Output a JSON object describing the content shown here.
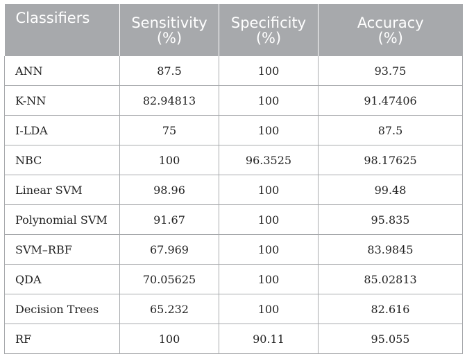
{
  "table": {
    "headers": [
      {
        "line1": "Classifiers",
        "line2": ""
      },
      {
        "line1": "Sensitivity",
        "line2": "(%)"
      },
      {
        "line1": "Specificity",
        "line2": "(%)"
      },
      {
        "line1": "Accuracy",
        "line2": "(%)"
      }
    ],
    "rows": [
      {
        "classifier": "ANN",
        "sensitivity": "87.5",
        "specificity": "100",
        "accuracy": "93.75"
      },
      {
        "classifier": "K-NN",
        "sensitivity": "82.94813",
        "specificity": "100",
        "accuracy": "91.47406"
      },
      {
        "classifier": "I-LDA",
        "sensitivity": "75",
        "specificity": "100",
        "accuracy": "87.5"
      },
      {
        "classifier": "NBC",
        "sensitivity": "100",
        "specificity": "96.3525",
        "accuracy": "98.17625"
      },
      {
        "classifier": "Linear SVM",
        "sensitivity": "98.96",
        "specificity": "100",
        "accuracy": "99.48"
      },
      {
        "classifier": "Polynomial SVM",
        "sensitivity": "91.67",
        "specificity": "100",
        "accuracy": "95.835"
      },
      {
        "classifier": "SVM–RBF",
        "sensitivity": "67.969",
        "specificity": "100",
        "accuracy": "83.9845"
      },
      {
        "classifier": "QDA",
        "sensitivity": "70.05625",
        "specificity": "100",
        "accuracy": "85.02813"
      },
      {
        "classifier": "Decision Trees",
        "sensitivity": "65.232",
        "specificity": "100",
        "accuracy": "82.616"
      },
      {
        "classifier": "RF",
        "sensitivity": "100",
        "specificity": "90.11",
        "accuracy": "95.055"
      }
    ]
  },
  "colors": {
    "header_bg": "#a7a9ac",
    "header_text": "#ffffff",
    "grid_line": "#a7a9ac",
    "cell_text": "#222222"
  }
}
